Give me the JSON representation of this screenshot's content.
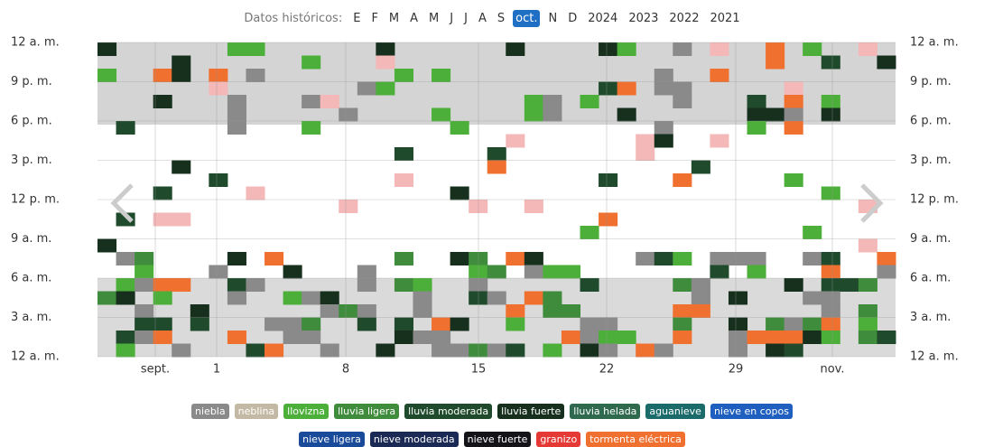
{
  "header": {
    "label": "Datos históricos:",
    "months": [
      "E",
      "F",
      "M",
      "A",
      "M",
      "J",
      "J",
      "A",
      "S",
      "oct.",
      "N",
      "D"
    ],
    "selected_month": 9,
    "years": [
      "2024",
      "2023",
      "2022",
      "2021"
    ]
  },
  "y_axis": {
    "left": [
      "12 a. m.",
      "9 p. m.",
      "6 p. m.",
      "3 p. m.",
      "12 p. m.",
      "9 a. m.",
      "6 a. m.",
      "3 a. m.",
      "12 a. m."
    ],
    "right": [
      "12 a. m.",
      "9 p. m.",
      "6 p. m.",
      "3 p. m.",
      "12 p. m.",
      "9 a. m.",
      "6 a. m.",
      "3 a. m.",
      "12 a. m."
    ]
  },
  "x_axis": [
    "sept.",
    "1",
    "8",
    "15",
    "22",
    "29",
    "nov."
  ],
  "legend": [
    [
      {
        "label": "niebla",
        "color": "#8a8a8a"
      },
      {
        "label": "neblina",
        "color": "#c4b9a4"
      },
      {
        "label": "llovizna",
        "color": "#4caf3a"
      },
      {
        "label": "lluvia ligera",
        "color": "#3f8d3c"
      },
      {
        "label": "lluvia moderada",
        "color": "#1f4b2c"
      },
      {
        "label": "lluvia fuerte",
        "color": "#17301e"
      },
      {
        "label": "lluvia helada",
        "color": "#2f6a4f"
      },
      {
        "label": "aguanieve",
        "color": "#1b6b6b"
      },
      {
        "label": "nieve en copos",
        "color": "#1f5fbf"
      }
    ],
    [
      {
        "label": "nieve ligera",
        "color": "#1a4a9a"
      },
      {
        "label": "nieve moderada",
        "color": "#1b2a55"
      },
      {
        "label": "nieve fuerte",
        "color": "#141418"
      },
      {
        "label": "granizo",
        "color": "#e53935"
      },
      {
        "label": "tormenta eléctrica",
        "color": "#f07030"
      }
    ]
  ]
}
